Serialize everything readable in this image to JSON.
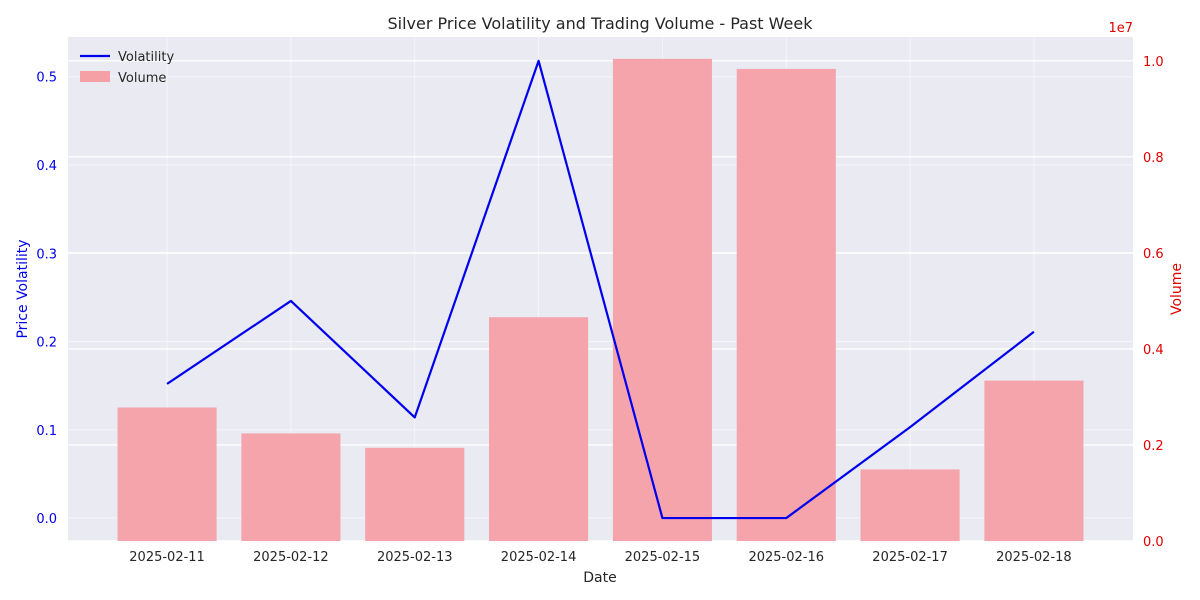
{
  "chart_data": {
    "type": "bar+line",
    "title": "Silver Price Volatility and Trading Volume - Past Week",
    "xlabel": "Date",
    "ylabel_left": "Price Volatility",
    "ylabel_right": "Volume",
    "right_axis_multiplier": "1e7",
    "categories": [
      "2025-02-11",
      "2025-02-12",
      "2025-02-13",
      "2025-02-14",
      "2025-02-15",
      "2025-02-16",
      "2025-02-17",
      "2025-02-18"
    ],
    "series": [
      {
        "name": "Volatility",
        "type": "line",
        "axis": "left",
        "color": "#0000ee",
        "values": [
          0.152,
          0.246,
          0.114,
          0.518,
          0.0,
          0.0,
          0.103,
          0.211
        ]
      },
      {
        "name": "Volume",
        "type": "bar",
        "axis": "right",
        "color": "#f4a0a5",
        "values": [
          2780000,
          2240000,
          1940000,
          4660000,
          10040000,
          9830000,
          1490000,
          3340000
        ]
      }
    ],
    "ylim_left": [
      -0.026,
      0.545
    ],
    "ylim_right": [
      0,
      10495000.0
    ],
    "yticks_left": [
      "0.0",
      "0.1",
      "0.2",
      "0.3",
      "0.4",
      "0.5"
    ],
    "yticks_right": [
      "0.0",
      "0.2",
      "0.4",
      "0.6",
      "0.8",
      "1.0"
    ],
    "grid": true,
    "legend_placement": "top-left",
    "left_axis_color": "#0000ee",
    "right_axis_color": "#e00000"
  }
}
